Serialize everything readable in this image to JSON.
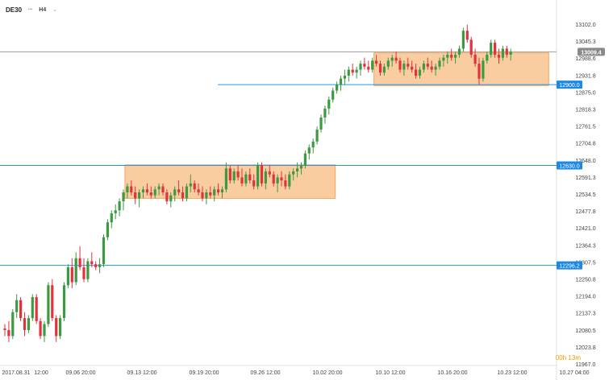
{
  "header": {
    "symbol": "DE30",
    "subtitle": "•••",
    "timeframe": "H4",
    "chevron_icon": "chevron-down-icon"
  },
  "countdown": "00h 13m",
  "colors": {
    "bull": "#3d9a41",
    "bear": "#e0323f",
    "zone_fill": "#f9c48f",
    "zone_stroke": "#f2a65c",
    "level_line": "#2196f3",
    "label_bg": "#1e88e5",
    "current_price_line": "#9e9e9e",
    "current_price_bg": "#8a8a8a"
  },
  "chart_data": {
    "type": "candlestick",
    "instrument": "DE30",
    "timeframe": "H4",
    "ylim": [
      11967.0,
      13102.0
    ],
    "y_ticks": [
      13102.0,
      13045.3,
      12988.6,
      12931.8,
      12875.0,
      12818.3,
      12761.5,
      12704.8,
      12648.0,
      12591.3,
      12534.5,
      12477.8,
      12421.0,
      12364.3,
      12307.5,
      12250.8,
      12194.0,
      12137.3,
      12080.5,
      12023.8,
      11967.0
    ],
    "x_ticks": [
      "2017.08.31",
      "12:00",
      "09.06 20:00",
      "09.13 12:00",
      "09.19 20:00",
      "09.26 12:00",
      "10.02 20:00",
      "10.10 12:00",
      "10.16 20:00",
      "10.23 12:00",
      "10.27 04:00"
    ],
    "horizontal_levels": [
      12900.0,
      12630.0,
      12296.2
    ],
    "current_price": 13009.4,
    "zones": [
      {
        "from_candle": 31,
        "to_candle": 83,
        "low": 12520.0,
        "high": 12632.0
      },
      {
        "from_candle": 94,
        "to_candle": 137,
        "low": 12897.0,
        "high": 13006.0
      }
    ],
    "candles": [
      [
        12085,
        12100,
        12060,
        12080
      ],
      [
        12080,
        12110,
        12040,
        12060
      ],
      [
        12060,
        12150,
        12050,
        12140
      ],
      [
        12140,
        12200,
        12120,
        12180
      ],
      [
        12180,
        12190,
        12110,
        12120
      ],
      [
        12120,
        12140,
        12060,
        12080
      ],
      [
        12080,
        12130,
        12070,
        12120
      ],
      [
        12120,
        12200,
        12110,
        12190
      ],
      [
        12190,
        12200,
        12100,
        12110
      ],
      [
        12110,
        12120,
        12050,
        12060
      ],
      [
        12060,
        12110,
        12040,
        12100
      ],
      [
        12100,
        12240,
        12090,
        12230
      ],
      [
        12230,
        12250,
        12110,
        12120
      ],
      [
        12120,
        12130,
        12040,
        12060
      ],
      [
        12060,
        12130,
        12050,
        12120
      ],
      [
        12120,
        12240,
        12110,
        12230
      ],
      [
        12230,
        12300,
        12220,
        12290
      ],
      [
        12290,
        12320,
        12220,
        12240
      ],
      [
        12240,
        12340,
        12230,
        12320
      ],
      [
        12320,
        12360,
        12280,
        12290
      ],
      [
        12290,
        12320,
        12240,
        12250
      ],
      [
        12250,
        12320,
        12240,
        12310
      ],
      [
        12310,
        12340,
        12290,
        12300
      ],
      [
        12300,
        12310,
        12280,
        12290
      ],
      [
        12290,
        12320,
        12270,
        12300
      ],
      [
        12300,
        12400,
        12290,
        12390
      ],
      [
        12390,
        12450,
        12380,
        12440
      ],
      [
        12440,
        12480,
        12420,
        12470
      ],
      [
        12470,
        12500,
        12450,
        12480
      ],
      [
        12480,
        12520,
        12460,
        12510
      ],
      [
        12510,
        12550,
        12480,
        12540
      ],
      [
        12540,
        12570,
        12520,
        12560
      ],
      [
        12560,
        12580,
        12530,
        12540
      ],
      [
        12540,
        12560,
        12500,
        12520
      ],
      [
        12520,
        12550,
        12490,
        12540
      ],
      [
        12540,
        12560,
        12520,
        12550
      ],
      [
        12550,
        12570,
        12530,
        12540
      ],
      [
        12540,
        12560,
        12520,
        12530
      ],
      [
        12530,
        12560,
        12520,
        12550
      ],
      [
        12550,
        12570,
        12530,
        12560
      ],
      [
        12560,
        12570,
        12530,
        12540
      ],
      [
        12540,
        12550,
        12500,
        12510
      ],
      [
        12510,
        12540,
        12490,
        12530
      ],
      [
        12530,
        12560,
        12510,
        12550
      ],
      [
        12550,
        12580,
        12530,
        12540
      ],
      [
        12540,
        12560,
        12510,
        12520
      ],
      [
        12520,
        12570,
        12510,
        12560
      ],
      [
        12560,
        12600,
        12540,
        12570
      ],
      [
        12570,
        12580,
        12540,
        12550
      ],
      [
        12550,
        12570,
        12530,
        12540
      ],
      [
        12540,
        12560,
        12510,
        12520
      ],
      [
        12520,
        12550,
        12500,
        12540
      ],
      [
        12540,
        12560,
        12520,
        12530
      ],
      [
        12530,
        12560,
        12510,
        12550
      ],
      [
        12550,
        12570,
        12530,
        12540
      ],
      [
        12540,
        12560,
        12520,
        12550
      ],
      [
        12550,
        12640,
        12540,
        12620
      ],
      [
        12620,
        12630,
        12570,
        12580
      ],
      [
        12580,
        12620,
        12570,
        12610
      ],
      [
        12610,
        12630,
        12580,
        12590
      ],
      [
        12590,
        12620,
        12560,
        12570
      ],
      [
        12570,
        12610,
        12560,
        12600
      ],
      [
        12600,
        12620,
        12570,
        12580
      ],
      [
        12580,
        12600,
        12550,
        12560
      ],
      [
        12560,
        12640,
        12550,
        12630
      ],
      [
        12630,
        12640,
        12560,
        12570
      ],
      [
        12570,
        12620,
        12550,
        12610
      ],
      [
        12610,
        12630,
        12590,
        12600
      ],
      [
        12600,
        12610,
        12560,
        12570
      ],
      [
        12570,
        12600,
        12540,
        12590
      ],
      [
        12590,
        12610,
        12560,
        12580
      ],
      [
        12580,
        12600,
        12550,
        12560
      ],
      [
        12560,
        12610,
        12550,
        12600
      ],
      [
        12600,
        12620,
        12580,
        12610
      ],
      [
        12610,
        12640,
        12590,
        12620
      ],
      [
        12620,
        12640,
        12600,
        12630
      ],
      [
        12630,
        12680,
        12620,
        12670
      ],
      [
        12670,
        12700,
        12650,
        12690
      ],
      [
        12690,
        12720,
        12670,
        12710
      ],
      [
        12710,
        12760,
        12700,
        12750
      ],
      [
        12750,
        12800,
        12740,
        12790
      ],
      [
        12790,
        12830,
        12770,
        12820
      ],
      [
        12820,
        12860,
        12800,
        12850
      ],
      [
        12850,
        12890,
        12840,
        12880
      ],
      [
        12880,
        12910,
        12870,
        12900
      ],
      [
        12900,
        12930,
        12880,
        12920
      ],
      [
        12920,
        12950,
        12900,
        12930
      ],
      [
        12930,
        12960,
        12910,
        12950
      ],
      [
        12950,
        12970,
        12930,
        12940
      ],
      [
        12940,
        12960,
        12920,
        12950
      ],
      [
        12950,
        12980,
        12930,
        12970
      ],
      [
        12970,
        12990,
        12950,
        12960
      ],
      [
        12960,
        12980,
        12940,
        12950
      ],
      [
        12950,
        12990,
        12940,
        12980
      ],
      [
        12980,
        13000,
        12960,
        12970
      ],
      [
        12970,
        12980,
        12930,
        12940
      ],
      [
        12940,
        12970,
        12930,
        12960
      ],
      [
        12960,
        12990,
        12950,
        12980
      ],
      [
        12980,
        13000,
        12960,
        12990
      ],
      [
        12990,
        13010,
        12970,
        12980
      ],
      [
        12980,
        12990,
        12940,
        12950
      ],
      [
        12950,
        12980,
        12930,
        12970
      ],
      [
        12970,
        12990,
        12950,
        12960
      ],
      [
        12960,
        12980,
        12940,
        12950
      ],
      [
        12950,
        12970,
        12920,
        12930
      ],
      [
        12930,
        12960,
        12920,
        12950
      ],
      [
        12950,
        12980,
        12940,
        12970
      ],
      [
        12970,
        12990,
        12950,
        12960
      ],
      [
        12960,
        12980,
        12940,
        12950
      ],
      [
        12950,
        12970,
        12930,
        12960
      ],
      [
        12960,
        12990,
        12950,
        12980
      ],
      [
        12980,
        13000,
        12960,
        12990
      ],
      [
        12990,
        13010,
        12970,
        13000
      ],
      [
        13000,
        13020,
        12980,
        12990
      ],
      [
        12990,
        13010,
        12970,
        13000
      ],
      [
        13000,
        13030,
        12990,
        13020
      ],
      [
        13020,
        13090,
        13010,
        13080
      ],
      [
        13080,
        13100,
        13040,
        13050
      ],
      [
        13050,
        13060,
        12990,
        13000
      ],
      [
        13000,
        13020,
        12960,
        12970
      ],
      [
        12970,
        12990,
        12900,
        12920
      ],
      [
        12920,
        12990,
        12910,
        12980
      ],
      [
        12980,
        13010,
        12970,
        13000
      ],
      [
        13000,
        13050,
        12990,
        13040
      ],
      [
        13040,
        13050,
        12990,
        13000
      ],
      [
        13000,
        13020,
        12970,
        12990
      ],
      [
        12990,
        13030,
        12980,
        13020
      ],
      [
        13020,
        13030,
        12990,
        13000
      ],
      [
        13000,
        13020,
        12980,
        13010
      ]
    ]
  }
}
